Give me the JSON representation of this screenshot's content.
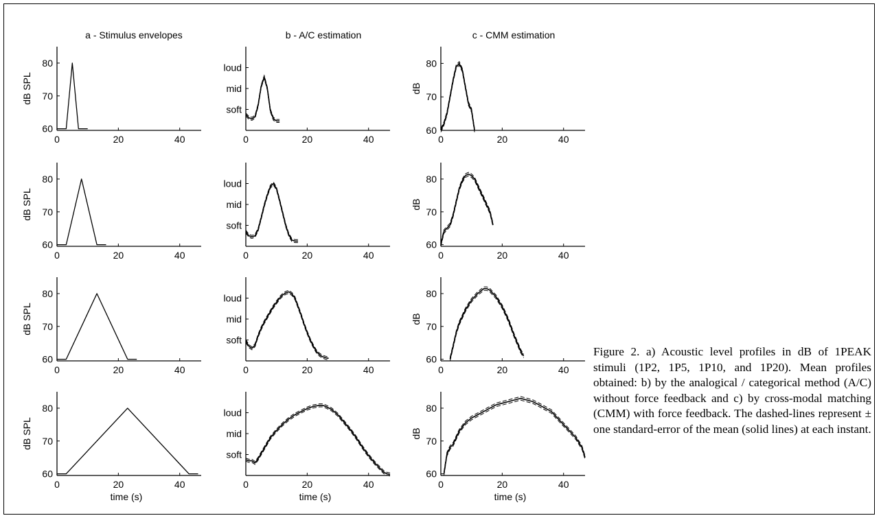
{
  "column_titles": [
    "a - Stimulus envelopes",
    "b - A/C estimation",
    "c - CMM estimation"
  ],
  "xlabel": "time (s)",
  "caption": "Figure 2. a) Acoustic level profiles in dB of 1PEAK stimuli (1P2, 1P5, 1P10, and 1P20). Mean profiles obtained: b) by the analogical / categorical method (A/C) without force feedback and c) by cross-modal matching (CMM) with force feedback. The dashed-lines represent ± one standard-error of the mean (solid lines) at each instant.",
  "chart_data": [
    {
      "type": "line",
      "panel": "a1",
      "title": "a - Stimulus envelopes",
      "ylabel": "dB SPL",
      "xlim": [
        0,
        47
      ],
      "ylim": [
        59.5,
        85
      ],
      "xticks": [
        0,
        20,
        40
      ],
      "yticks": [
        60,
        70,
        80
      ],
      "series": [
        {
          "x": [
            0,
            3,
            5,
            7,
            10
          ],
          "y": [
            60,
            60,
            80,
            60,
            60
          ]
        }
      ]
    },
    {
      "type": "line",
      "panel": "a2",
      "ylabel": "dB SPL",
      "xlim": [
        0,
        47
      ],
      "ylim": [
        59.5,
        85
      ],
      "xticks": [
        0,
        20,
        40
      ],
      "yticks": [
        60,
        70,
        80
      ],
      "series": [
        {
          "x": [
            0,
            3,
            8,
            13,
            16
          ],
          "y": [
            60,
            60,
            80,
            60,
            60
          ]
        }
      ]
    },
    {
      "type": "line",
      "panel": "a3",
      "ylabel": "dB SPL",
      "xlim": [
        0,
        47
      ],
      "ylim": [
        59.5,
        85
      ],
      "xticks": [
        0,
        20,
        40
      ],
      "yticks": [
        60,
        70,
        80
      ],
      "series": [
        {
          "x": [
            0,
            3,
            13,
            23,
            26
          ],
          "y": [
            60,
            60,
            80,
            60,
            60
          ]
        }
      ]
    },
    {
      "type": "line",
      "panel": "a4",
      "ylabel": "dB SPL",
      "xlabel": "time (s)",
      "xlim": [
        0,
        47
      ],
      "ylim": [
        59.5,
        85
      ],
      "xticks": [
        0,
        20,
        40
      ],
      "yticks": [
        60,
        70,
        80
      ],
      "series": [
        {
          "x": [
            0,
            3,
            23,
            43,
            46
          ],
          "y": [
            60,
            60,
            80,
            60,
            60
          ]
        }
      ]
    },
    {
      "type": "line",
      "panel": "b1",
      "title": "b - A/C estimation",
      "xlim": [
        0,
        47
      ],
      "ylim": [
        0,
        4
      ],
      "xticks": [
        0,
        20,
        40
      ],
      "yticks": [
        1,
        2,
        3
      ],
      "yticklabels": [
        "soft",
        "mid",
        "loud"
      ],
      "series": [
        {
          "x": [
            0,
            1,
            2,
            3,
            4,
            5,
            6,
            7,
            8,
            9,
            10,
            11
          ],
          "y": [
            0.75,
            0.6,
            0.55,
            0.65,
            1.2,
            2.1,
            2.55,
            2.0,
            0.95,
            0.55,
            0.45,
            0.45
          ]
        }
      ]
    },
    {
      "type": "line",
      "panel": "b2",
      "xlim": [
        0,
        47
      ],
      "ylim": [
        0,
        4
      ],
      "xticks": [
        0,
        20,
        40
      ],
      "yticks": [
        1,
        2,
        3
      ],
      "yticklabels": [
        "soft",
        "mid",
        "loud"
      ],
      "series": [
        {
          "x": [
            0,
            1,
            2,
            3,
            4,
            5,
            6,
            7,
            8,
            9,
            10,
            11,
            12,
            13,
            14,
            15,
            16,
            17
          ],
          "y": [
            0.7,
            0.5,
            0.45,
            0.5,
            0.8,
            1.35,
            1.95,
            2.45,
            2.85,
            3.0,
            2.75,
            2.2,
            1.6,
            1.0,
            0.55,
            0.3,
            0.25,
            0.25
          ]
        }
      ]
    },
    {
      "type": "line",
      "panel": "b3",
      "xlim": [
        0,
        47
      ],
      "ylim": [
        0,
        4
      ],
      "xticks": [
        0,
        20,
        40
      ],
      "yticks": [
        1,
        2,
        3
      ],
      "yticklabels": [
        "soft",
        "mid",
        "loud"
      ],
      "series": [
        {
          "x": [
            0,
            1,
            2,
            3,
            4,
            5,
            6,
            7,
            8,
            9,
            10,
            11,
            12,
            13,
            14,
            15,
            16,
            17,
            18,
            19,
            20,
            21,
            22,
            23,
            24,
            25,
            26,
            27
          ],
          "y": [
            0.95,
            0.7,
            0.6,
            0.75,
            1.2,
            1.55,
            1.85,
            2.1,
            2.35,
            2.6,
            2.8,
            3.0,
            3.15,
            3.25,
            3.3,
            3.2,
            3.0,
            2.6,
            2.2,
            1.75,
            1.35,
            1.0,
            0.7,
            0.45,
            0.3,
            0.2,
            0.15,
            0.12
          ]
        }
      ]
    },
    {
      "type": "line",
      "panel": "b4",
      "xlabel": "time (s)",
      "xlim": [
        0,
        47
      ],
      "ylim": [
        0,
        4
      ],
      "xticks": [
        0,
        20,
        40
      ],
      "yticks": [
        1,
        2,
        3
      ],
      "yticklabels": [
        "soft",
        "mid",
        "loud"
      ],
      "series": [
        {
          "x": [
            0,
            1,
            2,
            3,
            4,
            5,
            6,
            7,
            8,
            10,
            12,
            14,
            16,
            18,
            20,
            22,
            24,
            25,
            26,
            28,
            30,
            32,
            34,
            36,
            38,
            40,
            42,
            44,
            45,
            46,
            47
          ],
          "y": [
            0.75,
            0.7,
            0.7,
            0.6,
            0.8,
            1.05,
            1.3,
            1.55,
            1.8,
            2.15,
            2.45,
            2.7,
            2.9,
            3.05,
            3.2,
            3.3,
            3.35,
            3.35,
            3.3,
            3.15,
            2.9,
            2.55,
            2.2,
            1.8,
            1.35,
            0.95,
            0.6,
            0.3,
            0.15,
            0.08,
            0.05
          ]
        }
      ]
    },
    {
      "type": "line",
      "panel": "c1",
      "title": "c - CMM estimation",
      "ylabel": "dB",
      "xlim": [
        0,
        47
      ],
      "ylim": [
        60,
        85
      ],
      "xticks": [
        0,
        20,
        40
      ],
      "yticks": [
        60,
        70,
        80
      ],
      "series": [
        {
          "x": [
            0,
            1,
            2,
            3,
            4,
            5,
            6,
            7,
            8,
            9,
            10,
            11
          ],
          "y": [
            60,
            62,
            65,
            70,
            75,
            79,
            80,
            78,
            73,
            68,
            66,
            60
          ]
        }
      ]
    },
    {
      "type": "line",
      "panel": "c2",
      "ylabel": "dB",
      "xlim": [
        0,
        47
      ],
      "ylim": [
        59.5,
        85
      ],
      "xticks": [
        0,
        20,
        40
      ],
      "yticks": [
        60,
        70,
        80
      ],
      "series": [
        {
          "x": [
            0,
            1,
            2,
            3,
            4,
            5,
            6,
            7,
            8,
            9,
            10,
            11,
            12,
            13,
            14,
            15,
            16,
            17
          ],
          "y": [
            60,
            64,
            65,
            66,
            69,
            73,
            77,
            79.5,
            81,
            81.5,
            81,
            80,
            78,
            76,
            74,
            72,
            70,
            66
          ]
        }
      ]
    },
    {
      "type": "line",
      "panel": "c3",
      "ylabel": "dB",
      "xlim": [
        0,
        47
      ],
      "ylim": [
        59.5,
        85
      ],
      "xticks": [
        0,
        20,
        40
      ],
      "yticks": [
        60,
        70,
        80
      ],
      "series": [
        {
          "x": [
            3,
            4,
            5,
            6,
            7,
            8,
            10,
            12,
            14,
            15,
            16,
            18,
            20,
            22,
            24,
            26,
            27
          ],
          "y": [
            60,
            64,
            68,
            71,
            73,
            75,
            78,
            80,
            81.5,
            81.5,
            81,
            79,
            76,
            72,
            67,
            62.5,
            61
          ]
        }
      ]
    },
    {
      "type": "line",
      "panel": "c4",
      "ylabel": "dB",
      "xlabel": "time (s)",
      "xlim": [
        0,
        47
      ],
      "ylim": [
        59.5,
        85
      ],
      "xticks": [
        0,
        20,
        40
      ],
      "yticks": [
        60,
        70,
        80
      ],
      "series": [
        {
          "x": [
            1,
            2,
            3,
            4,
            5,
            6,
            8,
            10,
            12,
            14,
            16,
            18,
            20,
            22,
            24,
            26,
            28,
            30,
            32,
            34,
            36,
            38,
            40,
            42,
            44,
            46,
            47
          ],
          "y": [
            60,
            66,
            68,
            69,
            71,
            73,
            75.5,
            77,
            78,
            79,
            80,
            81,
            81.5,
            82,
            82.5,
            83,
            82.5,
            82,
            81,
            80,
            79,
            77,
            75,
            73,
            71,
            68,
            65
          ]
        }
      ]
    }
  ]
}
